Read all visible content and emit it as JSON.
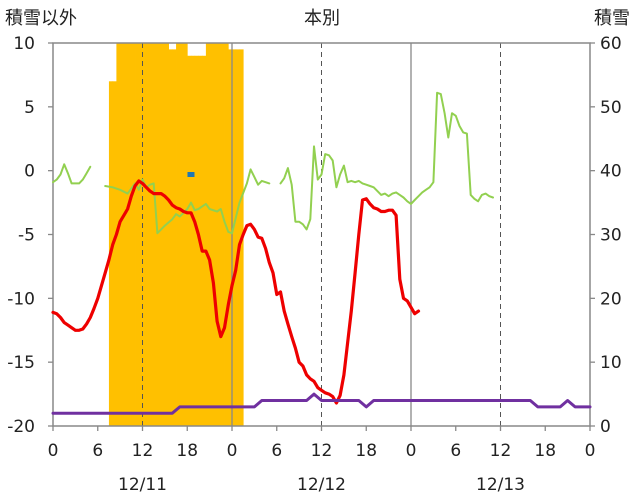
{
  "chart_data": {
    "type": "line",
    "titles": {
      "left": "積雪以外",
      "center": "本別",
      "right": "積雪"
    },
    "y_left": {
      "min": -20,
      "max": 10,
      "ticks": [
        10,
        5,
        0,
        -5,
        -10,
        -15,
        -20
      ]
    },
    "y_right": {
      "min": 0,
      "max": 60,
      "ticks": [
        60,
        50,
        40,
        30,
        20,
        10,
        0
      ]
    },
    "x": {
      "start": "12/11 0:00",
      "hours": 72,
      "tick_labels": [
        "0",
        "6",
        "12",
        "18",
        "0",
        "6",
        "12",
        "18",
        "0",
        "6",
        "12",
        "18",
        "0"
      ],
      "date_labels": [
        {
          "hour": 12,
          "label": "12/11"
        },
        {
          "hour": 36,
          "label": "12/12"
        },
        {
          "hour": 60,
          "label": "12/13"
        }
      ]
    },
    "grid": {
      "vertical_solid": [
        24,
        48
      ],
      "vertical_dashed": [
        12,
        36,
        60
      ],
      "horizontal": false
    },
    "colors": {
      "temperature": "#ee0000",
      "wind": "#92d050",
      "snow_depth": "#ffc000",
      "snowfall": "#1f77b4",
      "humidity": "#7030a0"
    },
    "series": [
      {
        "key": "snow_depth",
        "type": "bar",
        "axis": "right",
        "points": [
          [
            7.5,
            54
          ],
          [
            8,
            54
          ],
          [
            8.5,
            61
          ],
          [
            9,
            61
          ],
          [
            9.5,
            61
          ],
          [
            10,
            61
          ],
          [
            10.5,
            61
          ],
          [
            11,
            61
          ],
          [
            11.5,
            61
          ],
          [
            12,
            61
          ],
          [
            12.5,
            61
          ],
          [
            13,
            61
          ],
          [
            13.5,
            61
          ],
          [
            14,
            61
          ],
          [
            14.5,
            61
          ],
          [
            15,
            61
          ],
          [
            15.5,
            59
          ],
          [
            16,
            59
          ],
          [
            16.5,
            61
          ],
          [
            17,
            61
          ],
          [
            17.5,
            61
          ],
          [
            18,
            58
          ],
          [
            18.5,
            58
          ],
          [
            19,
            58
          ],
          [
            19.5,
            58
          ],
          [
            20,
            58
          ],
          [
            20.5,
            61
          ],
          [
            21,
            61
          ],
          [
            21.5,
            61
          ],
          [
            22,
            61
          ],
          [
            22.5,
            61
          ],
          [
            23,
            61
          ],
          [
            23.5,
            59
          ],
          [
            24,
            59
          ],
          [
            24.5,
            59
          ],
          [
            25,
            59
          ]
        ]
      },
      {
        "key": "wind",
        "type": "line",
        "axis": "left",
        "segments": [
          [
            [
              0,
              -0.9
            ],
            [
              0.5,
              -0.7
            ],
            [
              1,
              -0.3
            ],
            [
              1.5,
              0.5
            ],
            [
              2,
              -0.2
            ],
            [
              2.5,
              -1.0
            ],
            [
              3,
              -1.0
            ],
            [
              3.5,
              -1.0
            ],
            [
              4,
              -0.7
            ],
            [
              4.5,
              -0.2
            ],
            [
              5,
              0.3
            ]
          ],
          [
            [
              7,
              -1.2
            ],
            [
              8,
              -1.3
            ],
            [
              9,
              -1.5
            ],
            [
              10,
              -1.8
            ],
            [
              11,
              -1.0
            ],
            [
              11.5,
              -1.5
            ],
            [
              12,
              -0.7
            ],
            [
              12.5,
              -1.3
            ],
            [
              13,
              -1.1
            ],
            [
              13.5,
              -1.0
            ],
            [
              14,
              -4.9
            ],
            [
              14.5,
              -4.6
            ],
            [
              15,
              -4.3
            ],
            [
              16,
              -3.8
            ],
            [
              16.5,
              -3.4
            ],
            [
              17,
              -3.6
            ],
            [
              18,
              -3.0
            ],
            [
              18.5,
              -2.5
            ],
            [
              19,
              -3.1
            ],
            [
              19.5,
              -3.0
            ],
            [
              20,
              -2.8
            ],
            [
              20.5,
              -2.6
            ],
            [
              21,
              -3.0
            ],
            [
              22,
              -3.2
            ],
            [
              22.5,
              -3.0
            ],
            [
              23,
              -4.0
            ],
            [
              23.5,
              -4.8
            ],
            [
              24,
              -4.9
            ],
            [
              25,
              -2.5
            ],
            [
              26,
              -1.0
            ],
            [
              26.5,
              0.1
            ],
            [
              27,
              -0.5
            ],
            [
              27.5,
              -1.1
            ],
            [
              28,
              -0.8
            ],
            [
              28.5,
              -0.9
            ],
            [
              29,
              -1.0
            ]
          ],
          [
            [
              30.5,
              -1.0
            ],
            [
              31,
              -0.6
            ],
            [
              31.5,
              0.2
            ],
            [
              32,
              -1.1
            ],
            [
              32.5,
              -4.0
            ],
            [
              33,
              -4.0
            ],
            [
              33.5,
              -4.2
            ],
            [
              34,
              -4.6
            ],
            [
              34.5,
              -3.8
            ],
            [
              35,
              1.9
            ],
            [
              35.5,
              -0.7
            ],
            [
              36,
              -0.3
            ],
            [
              36.5,
              1.3
            ],
            [
              37,
              1.2
            ],
            [
              37.5,
              0.8
            ],
            [
              38,
              -1.3
            ],
            [
              38.5,
              -0.3
            ],
            [
              39,
              0.4
            ],
            [
              39.5,
              -0.9
            ],
            [
              40,
              -0.8
            ],
            [
              40.5,
              -0.9
            ],
            [
              41,
              -0.8
            ],
            [
              41.5,
              -1.0
            ],
            [
              42,
              -1.1
            ],
            [
              42.5,
              -1.2
            ],
            [
              43,
              -1.3
            ],
            [
              43.5,
              -1.6
            ],
            [
              44,
              -1.9
            ],
            [
              44.5,
              -1.8
            ],
            [
              45,
              -2.0
            ],
            [
              45.5,
              -1.8
            ],
            [
              46,
              -1.7
            ],
            [
              46.5,
              -1.9
            ],
            [
              47,
              -2.1
            ],
            [
              47.5,
              -2.4
            ],
            [
              48,
              -2.6
            ],
            [
              48.5,
              -2.3
            ],
            [
              49,
              -2.0
            ],
            [
              49.5,
              -1.7
            ],
            [
              50,
              -1.5
            ],
            [
              50.5,
              -1.3
            ],
            [
              51,
              -0.9
            ],
            [
              51.5,
              6.1
            ],
            [
              52,
              6.0
            ],
            [
              52.5,
              4.5
            ],
            [
              53,
              2.6
            ],
            [
              53.5,
              4.5
            ],
            [
              54,
              4.3
            ],
            [
              54.5,
              3.5
            ],
            [
              55,
              3.0
            ],
            [
              55.5,
              2.9
            ],
            [
              56,
              -1.9
            ],
            [
              56.5,
              -2.2
            ],
            [
              57,
              -2.4
            ],
            [
              57.5,
              -1.9
            ],
            [
              58,
              -1.8
            ],
            [
              58.5,
              -2.0
            ],
            [
              59,
              -2.1
            ]
          ]
        ]
      },
      {
        "key": "temperature",
        "type": "line",
        "axis": "left",
        "segments": [
          [
            [
              0,
              -11.1
            ],
            [
              0.5,
              -11.2
            ],
            [
              1,
              -11.5
            ],
            [
              1.5,
              -11.9
            ],
            [
              2,
              -12.1
            ],
            [
              2.5,
              -12.3
            ],
            [
              3,
              -12.5
            ],
            [
              3.5,
              -12.5
            ],
            [
              4,
              -12.4
            ],
            [
              4.5,
              -12.0
            ],
            [
              5,
              -11.5
            ],
            [
              5.5,
              -10.8
            ],
            [
              6,
              -10.0
            ],
            [
              6.5,
              -9.0
            ],
            [
              7,
              -8.0
            ],
            [
              7.5,
              -7.0
            ],
            [
              8,
              -5.8
            ],
            [
              8.5,
              -5.0
            ],
            [
              9,
              -4.0
            ],
            [
              9.5,
              -3.5
            ],
            [
              10,
              -3.0
            ],
            [
              10.5,
              -2.0
            ],
            [
              11,
              -1.2
            ],
            [
              11.5,
              -0.8
            ],
            [
              12,
              -1.0
            ],
            [
              12.5,
              -1.3
            ],
            [
              13,
              -1.6
            ],
            [
              13.5,
              -1.8
            ],
            [
              14,
              -1.8
            ],
            [
              14.5,
              -1.8
            ],
            [
              15,
              -2.0
            ],
            [
              15.5,
              -2.3
            ],
            [
              16,
              -2.7
            ],
            [
              16.5,
              -2.9
            ],
            [
              17,
              -3.0
            ],
            [
              17.5,
              -3.2
            ],
            [
              18,
              -3.3
            ],
            [
              18.5,
              -3.3
            ],
            [
              19,
              -4.0
            ],
            [
              19.5,
              -5.0
            ],
            [
              20,
              -6.3
            ],
            [
              20.5,
              -6.3
            ],
            [
              21,
              -7.0
            ],
            [
              21.5,
              -8.8
            ],
            [
              22,
              -11.8
            ],
            [
              22.5,
              -13.0
            ],
            [
              23,
              -12.3
            ],
            [
              23.5,
              -10.5
            ],
            [
              24,
              -9.0
            ],
            [
              24.5,
              -7.8
            ],
            [
              25,
              -5.8
            ],
            [
              25.5,
              -5.0
            ],
            [
              26,
              -4.3
            ],
            [
              26.5,
              -4.2
            ],
            [
              27,
              -4.6
            ],
            [
              27.5,
              -5.2
            ],
            [
              28,
              -5.3
            ],
            [
              28.5,
              -6.1
            ],
            [
              29,
              -7.2
            ],
            [
              29.5,
              -8.0
            ],
            [
              30,
              -9.7
            ],
            [
              30.5,
              -9.5
            ],
            [
              31,
              -11.0
            ],
            [
              31.5,
              -12.0
            ],
            [
              32,
              -13.0
            ],
            [
              32.5,
              -13.9
            ],
            [
              33,
              -15.0
            ],
            [
              33.5,
              -15.3
            ],
            [
              34,
              -16.0
            ],
            [
              34.5,
              -16.3
            ],
            [
              35,
              -16.5
            ],
            [
              35.5,
              -17.0
            ],
            [
              36,
              -17.2
            ],
            [
              36.5,
              -17.4
            ],
            [
              37,
              -17.5
            ],
            [
              37.5,
              -17.7
            ],
            [
              38,
              -18.2
            ],
            [
              38.5,
              -17.6
            ],
            [
              39,
              -16.0
            ],
            [
              39.5,
              -13.5
            ],
            [
              40,
              -11.0
            ],
            [
              40.5,
              -8.0
            ],
            [
              41,
              -5.0
            ],
            [
              41.5,
              -2.3
            ],
            [
              42,
              -2.2
            ],
            [
              42.5,
              -2.6
            ],
            [
              43,
              -2.9
            ],
            [
              43.5,
              -3.0
            ],
            [
              44,
              -3.2
            ],
            [
              44.5,
              -3.2
            ],
            [
              45,
              -3.1
            ],
            [
              45.5,
              -3.1
            ],
            [
              46,
              -3.5
            ],
            [
              46.5,
              -8.5
            ],
            [
              47,
              -10.0
            ],
            [
              47.5,
              -10.2
            ],
            [
              48,
              -10.7
            ],
            [
              48.5,
              -11.2
            ],
            [
              49,
              -11.0
            ]
          ]
        ]
      },
      {
        "key": "humidity",
        "type": "line",
        "axis": "left",
        "segments": [
          [
            [
              0,
              -19.0
            ],
            [
              16,
              -19.0
            ],
            [
              17,
              -18.5
            ],
            [
              27,
              -18.5
            ],
            [
              28,
              -18.0
            ],
            [
              34,
              -18.0
            ],
            [
              35,
              -17.5
            ],
            [
              36,
              -18.0
            ],
            [
              41,
              -18.0
            ],
            [
              42,
              -18.5
            ],
            [
              43,
              -18.0
            ],
            [
              64,
              -18.0
            ],
            [
              65,
              -18.5
            ],
            [
              68,
              -18.5
            ],
            [
              69,
              -18.0
            ],
            [
              70,
              -18.5
            ],
            [
              72,
              -18.5
            ]
          ]
        ]
      },
      {
        "key": "snowfall",
        "type": "marker",
        "axis": "left",
        "points": [
          [
            18.5,
            -0.3
          ]
        ]
      }
    ]
  }
}
